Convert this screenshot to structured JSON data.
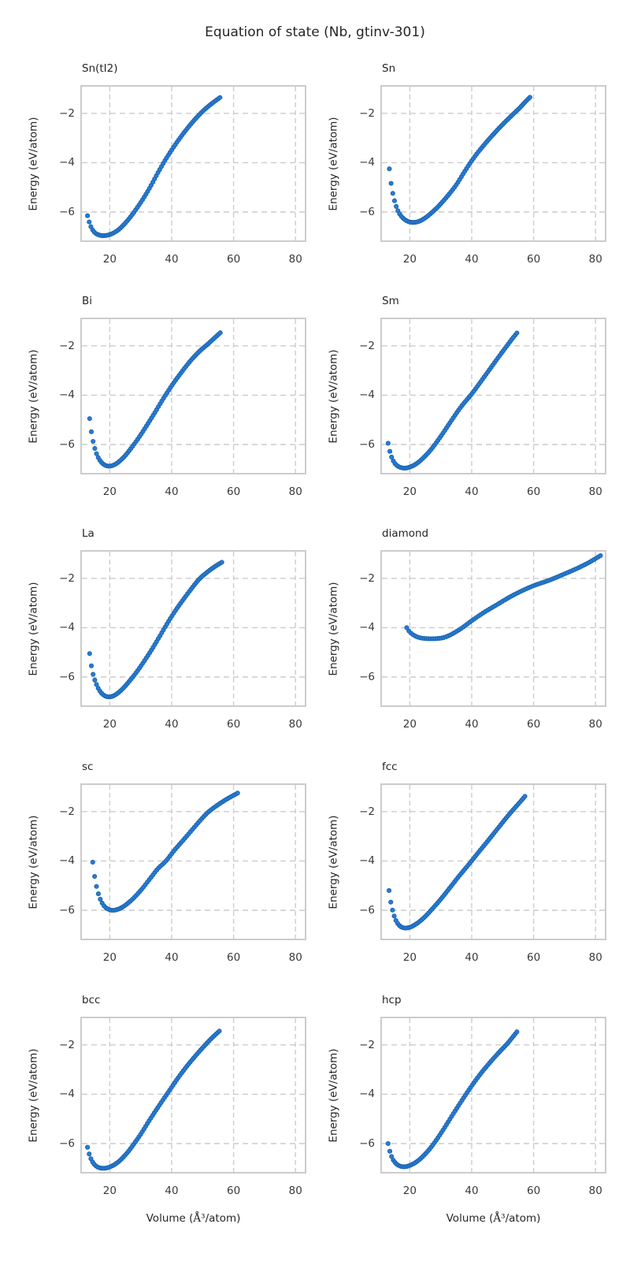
{
  "figure": {
    "title": "Equation of state (Nb, gtinv-301)",
    "background": "#ffffff",
    "text_color": "#262626"
  },
  "chart_data": {
    "type": "scatter",
    "title": "Equation of state (Nb, gtinv-301)",
    "layout_hint": "5 rows x 2 columns, shared x and y axes, grid on (dashed), no legend",
    "xlabel": {
      "prefix": "Volume (",
      "math": "Å³",
      "suffix": "/atom)"
    },
    "ylabel": "Energy (eV/atom)",
    "xlim": [
      11,
      83
    ],
    "ylim": [
      -7.15,
      -0.92
    ],
    "xticks": [
      20,
      40,
      60,
      80
    ],
    "xtick_labels": [
      "20",
      "40",
      "60",
      "80"
    ],
    "yticks": [
      -2,
      -4,
      -6
    ],
    "ytick_labels": [
      "−2",
      "−4",
      "−6"
    ],
    "grid": {
      "show": true,
      "style": "dashed",
      "color": "#cccccc"
    },
    "axes_edge_color": "#cccccc",
    "marker": {
      "shape": "circle",
      "fill": "#2a7cd4",
      "edge": "#1862ae",
      "radius": 2.6
    },
    "subplots": [
      {
        "label": "Sn(tI2)",
        "n_points": 78,
        "anchors": [
          [
            12.8,
            -6.15
          ],
          [
            13.4,
            -6.42
          ],
          [
            14.2,
            -6.67
          ],
          [
            15.2,
            -6.84
          ],
          [
            16.5,
            -6.93
          ],
          [
            18.0,
            -6.96
          ],
          [
            19.6,
            -6.93
          ],
          [
            21.2,
            -6.85
          ],
          [
            23.0,
            -6.7
          ],
          [
            25.0,
            -6.45
          ],
          [
            27.0,
            -6.15
          ],
          [
            29.0,
            -5.8
          ],
          [
            31.0,
            -5.42
          ],
          [
            33.0,
            -5.0
          ],
          [
            35.6,
            -4.4
          ],
          [
            38.0,
            -3.88
          ],
          [
            41.0,
            -3.3
          ],
          [
            44.0,
            -2.78
          ],
          [
            47.0,
            -2.32
          ],
          [
            50.0,
            -1.92
          ],
          [
            53.0,
            -1.6
          ],
          [
            55.6,
            -1.36
          ]
        ]
      },
      {
        "label": "Sn",
        "n_points": 83,
        "anchors": [
          [
            13.4,
            -4.25
          ],
          [
            14.0,
            -4.88
          ],
          [
            14.6,
            -5.3
          ],
          [
            15.3,
            -5.65
          ],
          [
            16.1,
            -5.93
          ],
          [
            17.0,
            -6.13
          ],
          [
            18.1,
            -6.28
          ],
          [
            19.4,
            -6.38
          ],
          [
            21.0,
            -6.42
          ],
          [
            22.7,
            -6.39
          ],
          [
            24.5,
            -6.28
          ],
          [
            26.5,
            -6.09
          ],
          [
            29.0,
            -5.8
          ],
          [
            32.0,
            -5.38
          ],
          [
            35.0,
            -4.9
          ],
          [
            38.0,
            -4.3
          ],
          [
            41.0,
            -3.75
          ],
          [
            44.0,
            -3.28
          ],
          [
            47.0,
            -2.85
          ],
          [
            50.0,
            -2.45
          ],
          [
            53.0,
            -2.08
          ],
          [
            55.5,
            -1.78
          ],
          [
            57.2,
            -1.55
          ],
          [
            58.8,
            -1.35
          ]
        ]
      },
      {
        "label": "Bi",
        "n_points": 77,
        "anchors": [
          [
            13.5,
            -4.95
          ],
          [
            14.1,
            -5.52
          ],
          [
            14.8,
            -5.98
          ],
          [
            15.6,
            -6.33
          ],
          [
            16.5,
            -6.58
          ],
          [
            17.6,
            -6.76
          ],
          [
            18.9,
            -6.86
          ],
          [
            20.3,
            -6.87
          ],
          [
            21.8,
            -6.8
          ],
          [
            23.4,
            -6.65
          ],
          [
            25.2,
            -6.42
          ],
          [
            27.2,
            -6.1
          ],
          [
            29.5,
            -5.7
          ],
          [
            32.0,
            -5.22
          ],
          [
            34.5,
            -4.72
          ],
          [
            37.0,
            -4.2
          ],
          [
            40.0,
            -3.62
          ],
          [
            43.0,
            -3.1
          ],
          [
            46.0,
            -2.62
          ],
          [
            49.0,
            -2.22
          ],
          [
            51.5,
            -1.95
          ],
          [
            53.5,
            -1.72
          ],
          [
            55.7,
            -1.47
          ]
        ]
      },
      {
        "label": "Sm",
        "n_points": 76,
        "anchors": [
          [
            13.0,
            -5.95
          ],
          [
            13.6,
            -6.3
          ],
          [
            14.3,
            -6.57
          ],
          [
            15.2,
            -6.77
          ],
          [
            16.3,
            -6.89
          ],
          [
            17.6,
            -6.95
          ],
          [
            19.0,
            -6.95
          ],
          [
            20.5,
            -6.89
          ],
          [
            22.0,
            -6.79
          ],
          [
            23.8,
            -6.61
          ],
          [
            26.0,
            -6.33
          ],
          [
            28.0,
            -6.02
          ],
          [
            30.5,
            -5.58
          ],
          [
            33.5,
            -5.02
          ],
          [
            36.5,
            -4.48
          ],
          [
            40.0,
            -3.95
          ],
          [
            43.0,
            -3.44
          ],
          [
            46.0,
            -2.92
          ],
          [
            49.0,
            -2.4
          ],
          [
            51.5,
            -1.98
          ],
          [
            53.0,
            -1.73
          ],
          [
            54.6,
            -1.48
          ]
        ]
      },
      {
        "label": "La",
        "n_points": 78,
        "anchors": [
          [
            13.5,
            -5.05
          ],
          [
            14.1,
            -5.58
          ],
          [
            14.8,
            -5.98
          ],
          [
            15.7,
            -6.3
          ],
          [
            16.7,
            -6.55
          ],
          [
            17.9,
            -6.72
          ],
          [
            19.2,
            -6.8
          ],
          [
            20.7,
            -6.79
          ],
          [
            22.2,
            -6.69
          ],
          [
            24.0,
            -6.5
          ],
          [
            26.0,
            -6.22
          ],
          [
            28.5,
            -5.83
          ],
          [
            31.0,
            -5.38
          ],
          [
            33.5,
            -4.9
          ],
          [
            36.0,
            -4.38
          ],
          [
            38.0,
            -3.95
          ],
          [
            41.0,
            -3.35
          ],
          [
            44.0,
            -2.82
          ],
          [
            47.0,
            -2.32
          ],
          [
            49.0,
            -2.02
          ],
          [
            52.0,
            -1.7
          ],
          [
            54.0,
            -1.52
          ],
          [
            56.2,
            -1.35
          ]
        ]
      },
      {
        "label": "diamond",
        "n_points": 90,
        "anchors": [
          [
            19.0,
            -4.0
          ],
          [
            20.0,
            -4.18
          ],
          [
            21.5,
            -4.32
          ],
          [
            23.0,
            -4.4
          ],
          [
            25.0,
            -4.44
          ],
          [
            27.0,
            -4.45
          ],
          [
            29.0,
            -4.44
          ],
          [
            31.0,
            -4.4
          ],
          [
            33.0,
            -4.3
          ],
          [
            35.0,
            -4.16
          ],
          [
            37.0,
            -4.0
          ],
          [
            40.0,
            -3.72
          ],
          [
            44.0,
            -3.38
          ],
          [
            48.0,
            -3.08
          ],
          [
            52.0,
            -2.78
          ],
          [
            56.0,
            -2.52
          ],
          [
            60.0,
            -2.3
          ],
          [
            65.0,
            -2.08
          ],
          [
            70.0,
            -1.82
          ],
          [
            74.0,
            -1.6
          ],
          [
            78.0,
            -1.35
          ],
          [
            81.6,
            -1.08
          ]
        ]
      },
      {
        "label": "sc",
        "n_points": 78,
        "anchors": [
          [
            14.5,
            -4.05
          ],
          [
            15.1,
            -4.62
          ],
          [
            15.8,
            -5.08
          ],
          [
            16.6,
            -5.44
          ],
          [
            17.5,
            -5.7
          ],
          [
            18.6,
            -5.88
          ],
          [
            19.8,
            -5.97
          ],
          [
            21.0,
            -6.0
          ],
          [
            22.4,
            -5.97
          ],
          [
            24.0,
            -5.88
          ],
          [
            26.0,
            -5.7
          ],
          [
            28.0,
            -5.47
          ],
          [
            30.5,
            -5.12
          ],
          [
            33.0,
            -4.72
          ],
          [
            35.5,
            -4.32
          ],
          [
            38.0,
            -4.02
          ],
          [
            41.0,
            -3.55
          ],
          [
            44.0,
            -3.12
          ],
          [
            47.0,
            -2.68
          ],
          [
            50.0,
            -2.25
          ],
          [
            52.0,
            -2.0
          ],
          [
            55.0,
            -1.72
          ],
          [
            58.0,
            -1.48
          ],
          [
            61.3,
            -1.25
          ]
        ]
      },
      {
        "label": "fcc",
        "n_points": 80,
        "anchors": [
          [
            13.3,
            -5.2
          ],
          [
            13.9,
            -5.7
          ],
          [
            14.6,
            -6.08
          ],
          [
            15.4,
            -6.38
          ],
          [
            16.3,
            -6.57
          ],
          [
            17.3,
            -6.68
          ],
          [
            18.6,
            -6.72
          ],
          [
            20.0,
            -6.69
          ],
          [
            21.5,
            -6.6
          ],
          [
            23.0,
            -6.47
          ],
          [
            25.0,
            -6.25
          ],
          [
            27.0,
            -5.98
          ],
          [
            30.0,
            -5.55
          ],
          [
            33.0,
            -5.08
          ],
          [
            36.0,
            -4.6
          ],
          [
            39.0,
            -4.15
          ],
          [
            42.0,
            -3.68
          ],
          [
            45.0,
            -3.22
          ],
          [
            48.0,
            -2.75
          ],
          [
            51.0,
            -2.28
          ],
          [
            53.0,
            -1.98
          ],
          [
            55.0,
            -1.7
          ],
          [
            57.2,
            -1.38
          ]
        ]
      },
      {
        "label": "bcc",
        "n_points": 78,
        "anchors": [
          [
            12.8,
            -6.15
          ],
          [
            13.4,
            -6.44
          ],
          [
            14.2,
            -6.69
          ],
          [
            15.2,
            -6.87
          ],
          [
            16.4,
            -6.97
          ],
          [
            17.8,
            -7.0
          ],
          [
            19.3,
            -6.98
          ],
          [
            21.0,
            -6.89
          ],
          [
            22.5,
            -6.77
          ],
          [
            24.0,
            -6.6
          ],
          [
            26.0,
            -6.32
          ],
          [
            28.0,
            -5.98
          ],
          [
            30.0,
            -5.62
          ],
          [
            33.0,
            -5.02
          ],
          [
            36.0,
            -4.45
          ],
          [
            39.0,
            -3.9
          ],
          [
            42.0,
            -3.35
          ],
          [
            45.0,
            -2.85
          ],
          [
            48.0,
            -2.4
          ],
          [
            51.0,
            -1.98
          ],
          [
            53.0,
            -1.72
          ],
          [
            55.4,
            -1.44
          ]
        ]
      },
      {
        "label": "hcp",
        "n_points": 76,
        "anchors": [
          [
            13.0,
            -6.0
          ],
          [
            13.6,
            -6.33
          ],
          [
            14.4,
            -6.61
          ],
          [
            15.4,
            -6.79
          ],
          [
            16.6,
            -6.9
          ],
          [
            18.0,
            -6.94
          ],
          [
            19.5,
            -6.91
          ],
          [
            21.0,
            -6.83
          ],
          [
            22.5,
            -6.71
          ],
          [
            24.0,
            -6.55
          ],
          [
            26.0,
            -6.28
          ],
          [
            28.0,
            -5.96
          ],
          [
            31.0,
            -5.4
          ],
          [
            34.0,
            -4.8
          ],
          [
            37.0,
            -4.22
          ],
          [
            40.0,
            -3.66
          ],
          [
            43.0,
            -3.15
          ],
          [
            46.0,
            -2.7
          ],
          [
            49.0,
            -2.28
          ],
          [
            51.5,
            -1.95
          ],
          [
            53.0,
            -1.72
          ],
          [
            54.6,
            -1.47
          ]
        ]
      }
    ]
  }
}
